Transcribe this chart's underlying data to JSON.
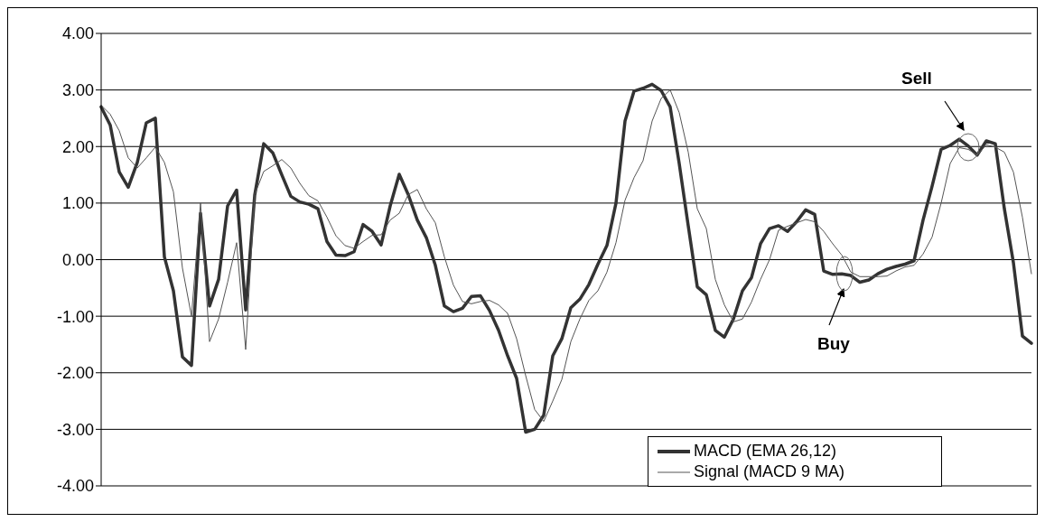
{
  "chart_data": {
    "type": "line",
    "categories": [
      null,
      null,
      null,
      null,
      null,
      null,
      null,
      null,
      null,
      null,
      null,
      null,
      null,
      null,
      null,
      null,
      null,
      null,
      null,
      null,
      null,
      null,
      null,
      null,
      null,
      null,
      null,
      null,
      null,
      null,
      null,
      null,
      null,
      null,
      null,
      null,
      null,
      null,
      null,
      null,
      null,
      null,
      null,
      null,
      null,
      null,
      null,
      null,
      null,
      null,
      null,
      null,
      null,
      null,
      null,
      null,
      null,
      null,
      null,
      null,
      null,
      null,
      null,
      null,
      null,
      null,
      null,
      null,
      null,
      null,
      null,
      null,
      null,
      null,
      null,
      null,
      null,
      null,
      null,
      null,
      null,
      null,
      null,
      null,
      null,
      null,
      null,
      null,
      null,
      null,
      null,
      null,
      null,
      null,
      null,
      null,
      null,
      null,
      null,
      null,
      null,
      null,
      null,
      null
    ],
    "series": [
      {
        "name": "MACD (EMA 26,12)",
        "color": "#333333",
        "values": [
          2.7,
          2.38,
          1.55,
          1.28,
          1.72,
          2.42,
          2.5,
          0.05,
          -0.55,
          -1.72,
          -1.87,
          0.82,
          -0.82,
          -0.35,
          0.95,
          1.23,
          -0.89,
          1.14,
          2.05,
          1.89,
          1.5,
          1.12,
          1.02,
          0.98,
          0.9,
          0.32,
          0.08,
          0.07,
          0.14,
          0.62,
          0.5,
          0.26,
          0.95,
          1.51,
          1.15,
          0.7,
          0.39,
          -0.1,
          -0.82,
          -0.92,
          -0.86,
          -0.65,
          -0.64,
          -0.9,
          -1.25,
          -1.7,
          -2.1,
          -3.05,
          -3.0,
          -2.75,
          -1.7,
          -1.4,
          -0.85,
          -0.7,
          -0.44,
          -0.08,
          0.25,
          1.0,
          2.45,
          2.98,
          3.03,
          3.1,
          2.99,
          2.7,
          1.7,
          0.6,
          -0.48,
          -0.62,
          -1.25,
          -1.37,
          -1.05,
          -0.55,
          -0.32,
          0.28,
          0.55,
          0.6,
          0.5,
          0.67,
          0.88,
          0.8,
          -0.2,
          -0.26,
          -0.25,
          -0.28,
          -0.4,
          -0.36,
          -0.25,
          -0.17,
          -0.12,
          -0.08,
          -0.02,
          0.7,
          1.3,
          1.95,
          2.02,
          2.13,
          2.01,
          1.85,
          2.1,
          2.05,
          0.9,
          -0.05,
          -1.35,
          -1.48
        ]
      },
      {
        "name": "Signal (MACD 9  MA)",
        "color": "#555555",
        "values": [
          2.73,
          2.57,
          2.28,
          1.8,
          1.62,
          1.8,
          1.99,
          1.72,
          1.2,
          -0.15,
          -1.0,
          1.0,
          -1.45,
          -1.05,
          -0.4,
          0.3,
          -1.59,
          1.15,
          1.56,
          1.66,
          1.77,
          1.62,
          1.35,
          1.13,
          1.04,
          0.75,
          0.42,
          0.25,
          0.2,
          0.32,
          0.43,
          0.44,
          0.7,
          0.82,
          1.15,
          1.24,
          0.9,
          0.65,
          0.05,
          -0.45,
          -0.74,
          -0.78,
          -0.74,
          -0.72,
          -0.8,
          -0.95,
          -1.4,
          -2.05,
          -2.65,
          -2.86,
          -2.5,
          -2.12,
          -1.45,
          -1.05,
          -0.72,
          -0.55,
          -0.22,
          0.3,
          1.05,
          1.45,
          1.75,
          2.45,
          2.85,
          3.0,
          2.6,
          1.9,
          0.9,
          0.55,
          -0.35,
          -0.8,
          -1.1,
          -1.05,
          -0.75,
          -0.35,
          0.0,
          0.52,
          0.59,
          0.65,
          0.71,
          0.67,
          0.5,
          0.28,
          0.08,
          -0.22,
          -0.3,
          -0.3,
          -0.3,
          -0.29,
          -0.2,
          -0.13,
          -0.1,
          0.1,
          0.4,
          1.0,
          1.7,
          1.98,
          1.95,
          1.85,
          2.03,
          1.99,
          1.9,
          1.55,
          0.75,
          -0.25
        ]
      }
    ],
    "ylim": [
      -4,
      4
    ],
    "yticks": [
      {
        "value": -4,
        "label": "-4.00"
      },
      {
        "value": -3,
        "label": "-3.00"
      },
      {
        "value": -2,
        "label": "-2.00"
      },
      {
        "value": -1,
        "label": "-1.00"
      },
      {
        "value": 0,
        "label": "0.00"
      },
      {
        "value": 1,
        "label": "1.00"
      },
      {
        "value": 2,
        "label": "2.00"
      },
      {
        "value": 3,
        "label": "3.00"
      },
      {
        "value": 4,
        "label": "4.00"
      }
    ],
    "grid": "y",
    "legend": "bottom right",
    "marker": "none",
    "line_style": "solid",
    "annotations": [
      "Sell",
      "Buy"
    ]
  }
}
